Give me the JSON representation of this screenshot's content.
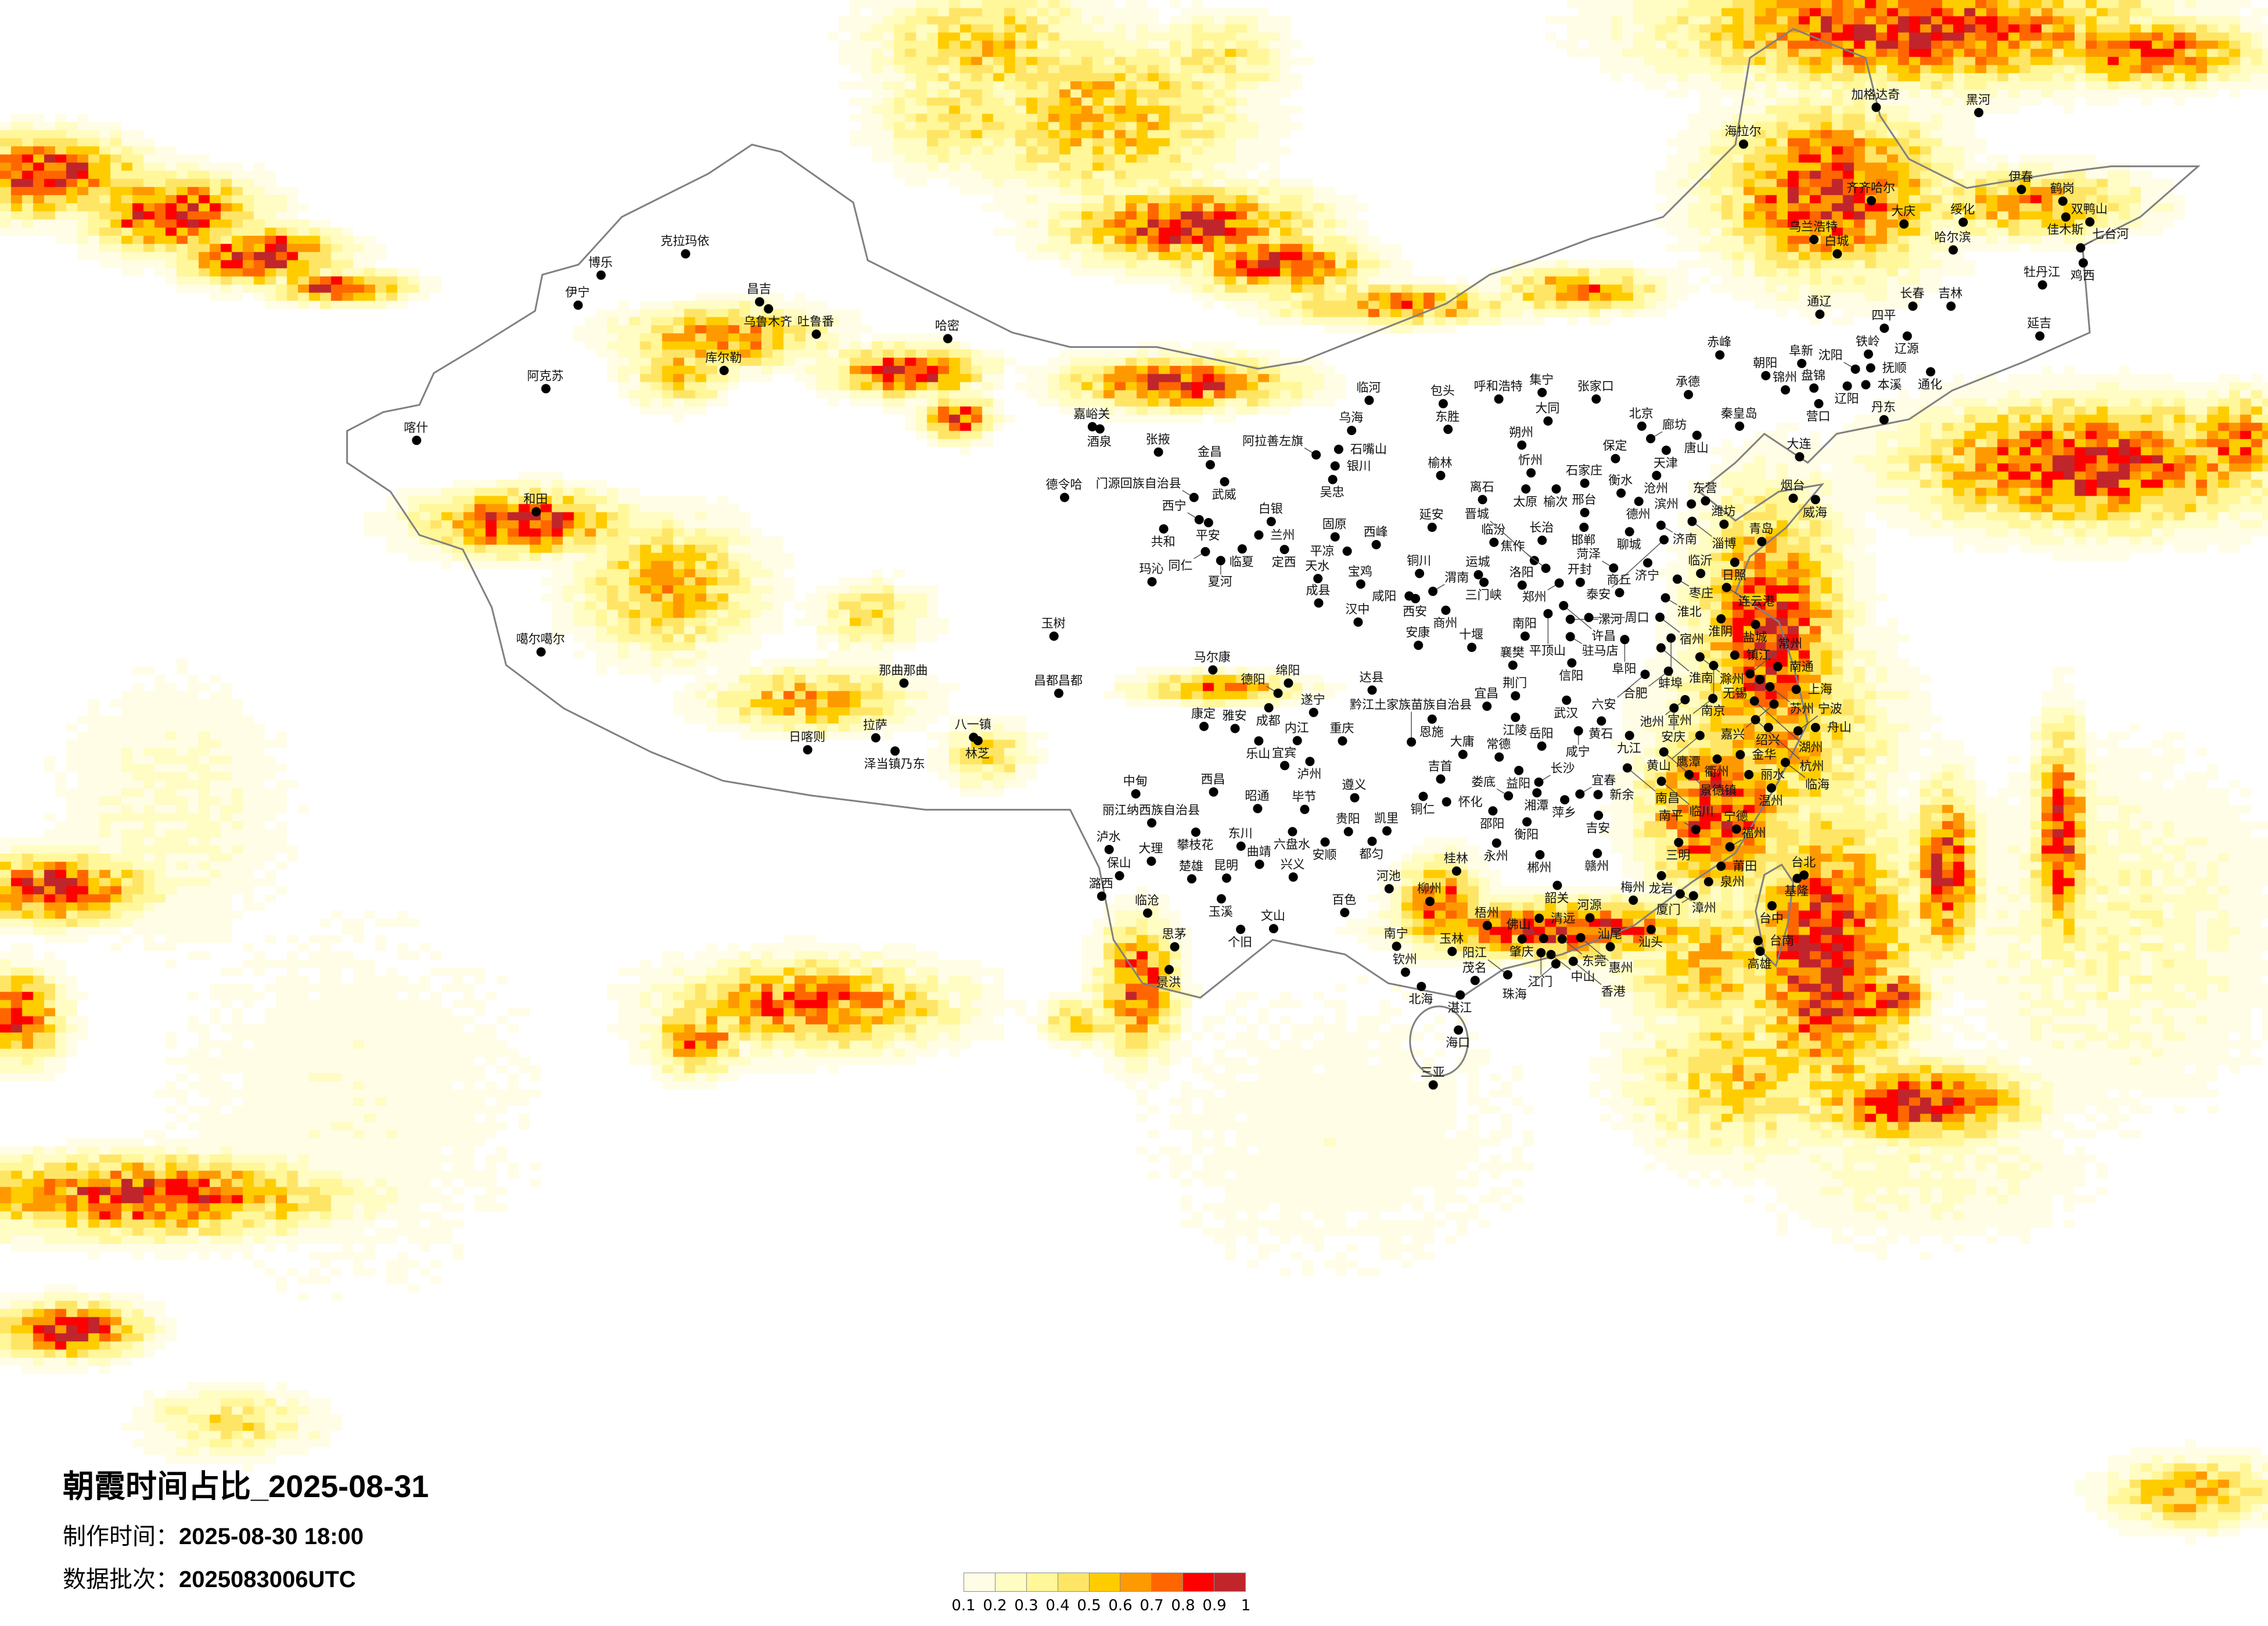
{
  "header": {
    "title": "朝霞时间占比_2025-08-31",
    "made_label": "制作时间：",
    "made_value": "2025-08-30 18:00",
    "batch_label": "数据批次：",
    "batch_value": "2025083006UTC"
  },
  "legend": {
    "ticks": [
      "0.1",
      "0.2",
      "0.3",
      "0.4",
      "0.5",
      "0.6",
      "0.7",
      "0.8",
      "0.9",
      "1"
    ],
    "bins": [
      {
        "range": [
          0.1,
          0.2
        ],
        "color": "#fffde6"
      },
      {
        "range": [
          0.2,
          0.3
        ],
        "color": "#fffcc4"
      },
      {
        "range": [
          0.3,
          0.4
        ],
        "color": "#fff799"
      },
      {
        "range": [
          0.4,
          0.5
        ],
        "color": "#ffe566"
      },
      {
        "range": [
          0.5,
          0.6
        ],
        "color": "#ffcc00"
      },
      {
        "range": [
          0.6,
          0.7
        ],
        "color": "#ff9900"
      },
      {
        "range": [
          0.7,
          0.8
        ],
        "color": "#ff6600"
      },
      {
        "range": [
          0.8,
          0.9
        ],
        "color": "#ff0000"
      },
      {
        "range": [
          0.9,
          1.0
        ],
        "color": "#c0252b"
      }
    ]
  },
  "map": {
    "variable": "朝霞时间占比",
    "border_color": "#808080",
    "city_dot_color": "#000000"
  },
  "cities": {
    "xinjiang": [
      "克拉玛依",
      "博乐",
      "伊宁",
      "昌吉",
      "乌鲁木齐",
      "吐鲁番",
      "哈密",
      "库尔勒",
      "阿克苏",
      "和田"
    ],
    "far_west": [
      "喀什",
      "噶尔噶尔"
    ],
    "northwest": [
      "嘉峪关",
      "酒泉",
      "张掖",
      "金昌",
      "武威",
      "门源回族自治县",
      "德令哈",
      "西宁",
      "平安",
      "共和",
      "白银",
      "兰州",
      "临夏",
      "同仁",
      "夏河",
      "定西",
      "玛沁",
      "阿拉善左旗",
      "石嘴山",
      "银川",
      "吴忠",
      "固原",
      "天水",
      "成县",
      "乌海",
      "宝鸡",
      "平凉",
      "西峰",
      "汉中"
    ],
    "southwest": [
      "玉树",
      "那曲那曲",
      "昌都昌都",
      "拉萨",
      "日喀则",
      "泽当镇乃东",
      "八一镇",
      "林芝",
      "马尔康",
      "绵阳",
      "德阳",
      "成都",
      "遂宁",
      "康定",
      "雅安",
      "乐山",
      "西昌",
      "中甸",
      "丽江纳西族自治县",
      "攀枝花",
      "泸水",
      "大理",
      "保山",
      "潞西",
      "临沧",
      "楚雄",
      "昆明",
      "玉溪",
      "东川",
      "曲靖",
      "昭通",
      "个旧",
      "文山",
      "思茅",
      "景洪"
    ],
    "south": [
      "内江",
      "宜宾",
      "泸州",
      "重庆",
      "黔江土家族苗族自治县",
      "岳阳",
      "大庸",
      "常德",
      "益阳",
      "吉首",
      "长沙",
      "湘潭",
      "萍乡",
      "宜春",
      "新余",
      "吉安",
      "娄底",
      "邵阳",
      "衡阳",
      "铜仁",
      "怀化",
      "遵义",
      "毕节",
      "六盘水",
      "贵阳",
      "安顺",
      "凯里",
      "都匀",
      "永州",
      "郴州",
      "赣州",
      "桂林",
      "河池",
      "兴义",
      "柳州",
      "百色",
      "韶关",
      "清远",
      "河源",
      "梧州",
      "肇庆",
      "佛山",
      "东莞",
      "惠州",
      "汕尾",
      "江门",
      "中山",
      "香港",
      "珠海",
      "南宁",
      "玉林",
      "钦州",
      "北海",
      "茂名",
      "阳江",
      "湛江",
      "海口",
      "三亚"
    ],
    "north_central": [
      "临河",
      "包头",
      "呼和浩特",
      "集宁",
      "张家口",
      "大同",
      "东胜",
      "朔州",
      "北京",
      "廊坊",
      "天津",
      "唐山",
      "承德",
      "秦皇岛",
      "保定",
      "沧州",
      "石家庄",
      "太原",
      "榆次",
      "忻州",
      "榆林",
      "离石",
      "延安",
      "邢台",
      "邯郸",
      "衡水",
      "德州",
      "济南",
      "滨州",
      "东营",
      "淄博",
      "潍坊",
      "烟台",
      "威海",
      "青岛",
      "日照",
      "临沂",
      "枣庄",
      "连云港",
      "济宁",
      "泰安",
      "聊城",
      "菏泽",
      "商丘",
      "开封",
      "郑州",
      "洛阳",
      "三门峡",
      "运城",
      "临汾",
      "长治",
      "晋城",
      "焦作",
      "铜川",
      "渭南",
      "西安",
      "咸阳",
      "商州",
      "安康",
      "十堰",
      "南阳",
      "许昌",
      "平顶山",
      "漯河",
      "周口",
      "驻马店",
      "信阳",
      "阜阳",
      "淮北",
      "宿州",
      "淮阴",
      "盐城",
      "蚌埠",
      "淮南",
      "合肥",
      "六安",
      "滁州",
      "南京",
      "镇江",
      "常州",
      "南通",
      "无锡",
      "苏州",
      "上海",
      "嘉兴",
      "湖州",
      "杭州",
      "绍兴",
      "宁波",
      "舟山",
      "宣州",
      "池州",
      "安庆",
      "黄山",
      "九江",
      "武汉",
      "黄石",
      "咸宁",
      "宜昌",
      "荆门",
      "江陵",
      "襄樊",
      "恩施",
      "达县",
      "大连",
      "丹东"
    ],
    "northeast": [
      "加格达奇",
      "黑河",
      "海拉尔",
      "齐齐哈尔",
      "伊春",
      "鹤岗",
      "佳木斯",
      "双鸭山",
      "大庆",
      "绥化",
      "乌兰浩特",
      "白城",
      "哈尔滨",
      "七台河",
      "鸡西",
      "牡丹江",
      "长春",
      "吉林",
      "通辽",
      "四平",
      "辽源",
      "延吉",
      "赤峰",
      "铁岭",
      "阜新",
      "朝阳",
      "沈阳",
      "抚顺",
      "辽阳",
      "本溪",
      "锦州",
      "盘锦",
      "营口",
      "通化"
    ],
    "southeast": [
      "南昌",
      "景德镇",
      "鹰潭",
      "临川",
      "衢州",
      "金华",
      "丽水",
      "临海",
      "温州",
      "南平",
      "宁德",
      "三明",
      "福州",
      "莆田",
      "泉州",
      "龙岩",
      "漳州",
      "厦门",
      "梅州",
      "汕头",
      "台北",
      "基隆",
      "台中",
      "台南",
      "高雄"
    ]
  }
}
